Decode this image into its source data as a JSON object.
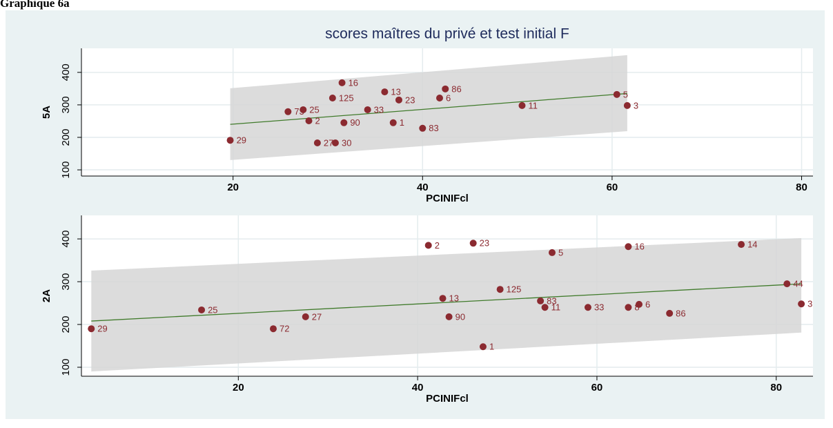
{
  "heading": "Graphique 6a",
  "chart_data": [
    {
      "type": "scatter",
      "title": "scores maîtres du privé et test initial F",
      "xlabel": "PCINIFcl",
      "ylabel": "5A",
      "xlim": [
        4,
        81.2
      ],
      "ylim": [
        81,
        474
      ],
      "xticks": [
        20,
        40,
        60,
        80
      ],
      "yticks": [
        100,
        200,
        300,
        400
      ],
      "grid": true,
      "color": "#8b2a30",
      "fit_color": "#3f7a2a",
      "band_color": "#d6d6d6",
      "x": [
        31.5,
        36.0,
        42.4,
        30.5,
        37.5,
        41.8,
        60.5,
        61.6,
        50.5,
        25.8,
        27.4,
        34.2,
        28.0,
        31.7,
        36.9,
        40.0,
        19.7,
        28.9,
        30.8
      ],
      "values": [
        368,
        340,
        349,
        321,
        315,
        321,
        332,
        298,
        298,
        279,
        285,
        285,
        251,
        245,
        245,
        228,
        191,
        183,
        183
      ],
      "point_labels": [
        "16",
        "13",
        "86",
        "125",
        "23",
        "6",
        "5",
        "3",
        "11",
        "73",
        "25",
        "33",
        "2",
        "90",
        "1",
        "83",
        "29",
        "27",
        "30"
      ],
      "fit": {
        "x": [
          19.7,
          61.6
        ],
        "y": [
          240,
          335
        ]
      },
      "band": {
        "x": [
          19.7,
          61.6
        ],
        "upper": [
          351,
          453
        ],
        "lower": [
          130,
          219
        ]
      }
    },
    {
      "type": "scatter",
      "xlabel": "PCINIFcl",
      "ylabel": "2A",
      "xlim": [
        2.5,
        84.1
      ],
      "ylim": [
        79,
        455
      ],
      "xticks": [
        20,
        40,
        60,
        80
      ],
      "yticks": [
        100,
        200,
        300,
        400
      ],
      "grid": true,
      "color": "#8b2a30",
      "fit_color": "#3f7a2a",
      "band_color": "#d6d6d6",
      "x": [
        3.6,
        15.9,
        23.9,
        27.5,
        41.2,
        46.2,
        42.8,
        49.2,
        43.5,
        47.3,
        55.0,
        53.7,
        54.2,
        59.0,
        63.5,
        63.5,
        64.7,
        68.1,
        76.1,
        81.2,
        82.8
      ],
      "values": [
        190,
        234,
        190,
        218,
        385,
        390,
        261,
        282,
        218,
        148,
        368,
        255,
        240,
        240,
        382,
        240,
        247,
        226,
        387,
        295,
        248
      ],
      "point_labels": [
        "29",
        "25",
        "72",
        "27",
        "2",
        "23",
        "13",
        "125",
        "90",
        "1",
        "5",
        "83",
        "11",
        "33",
        "16",
        "8",
        "6",
        "86",
        "14",
        "44",
        "3"
      ],
      "fit": {
        "x": [
          3.6,
          82.8
        ],
        "y": [
          208,
          295
        ]
      },
      "band": {
        "x": [
          3.6,
          82.8
        ],
        "upper": [
          326,
          402
        ],
        "lower": [
          90,
          181
        ]
      }
    }
  ]
}
